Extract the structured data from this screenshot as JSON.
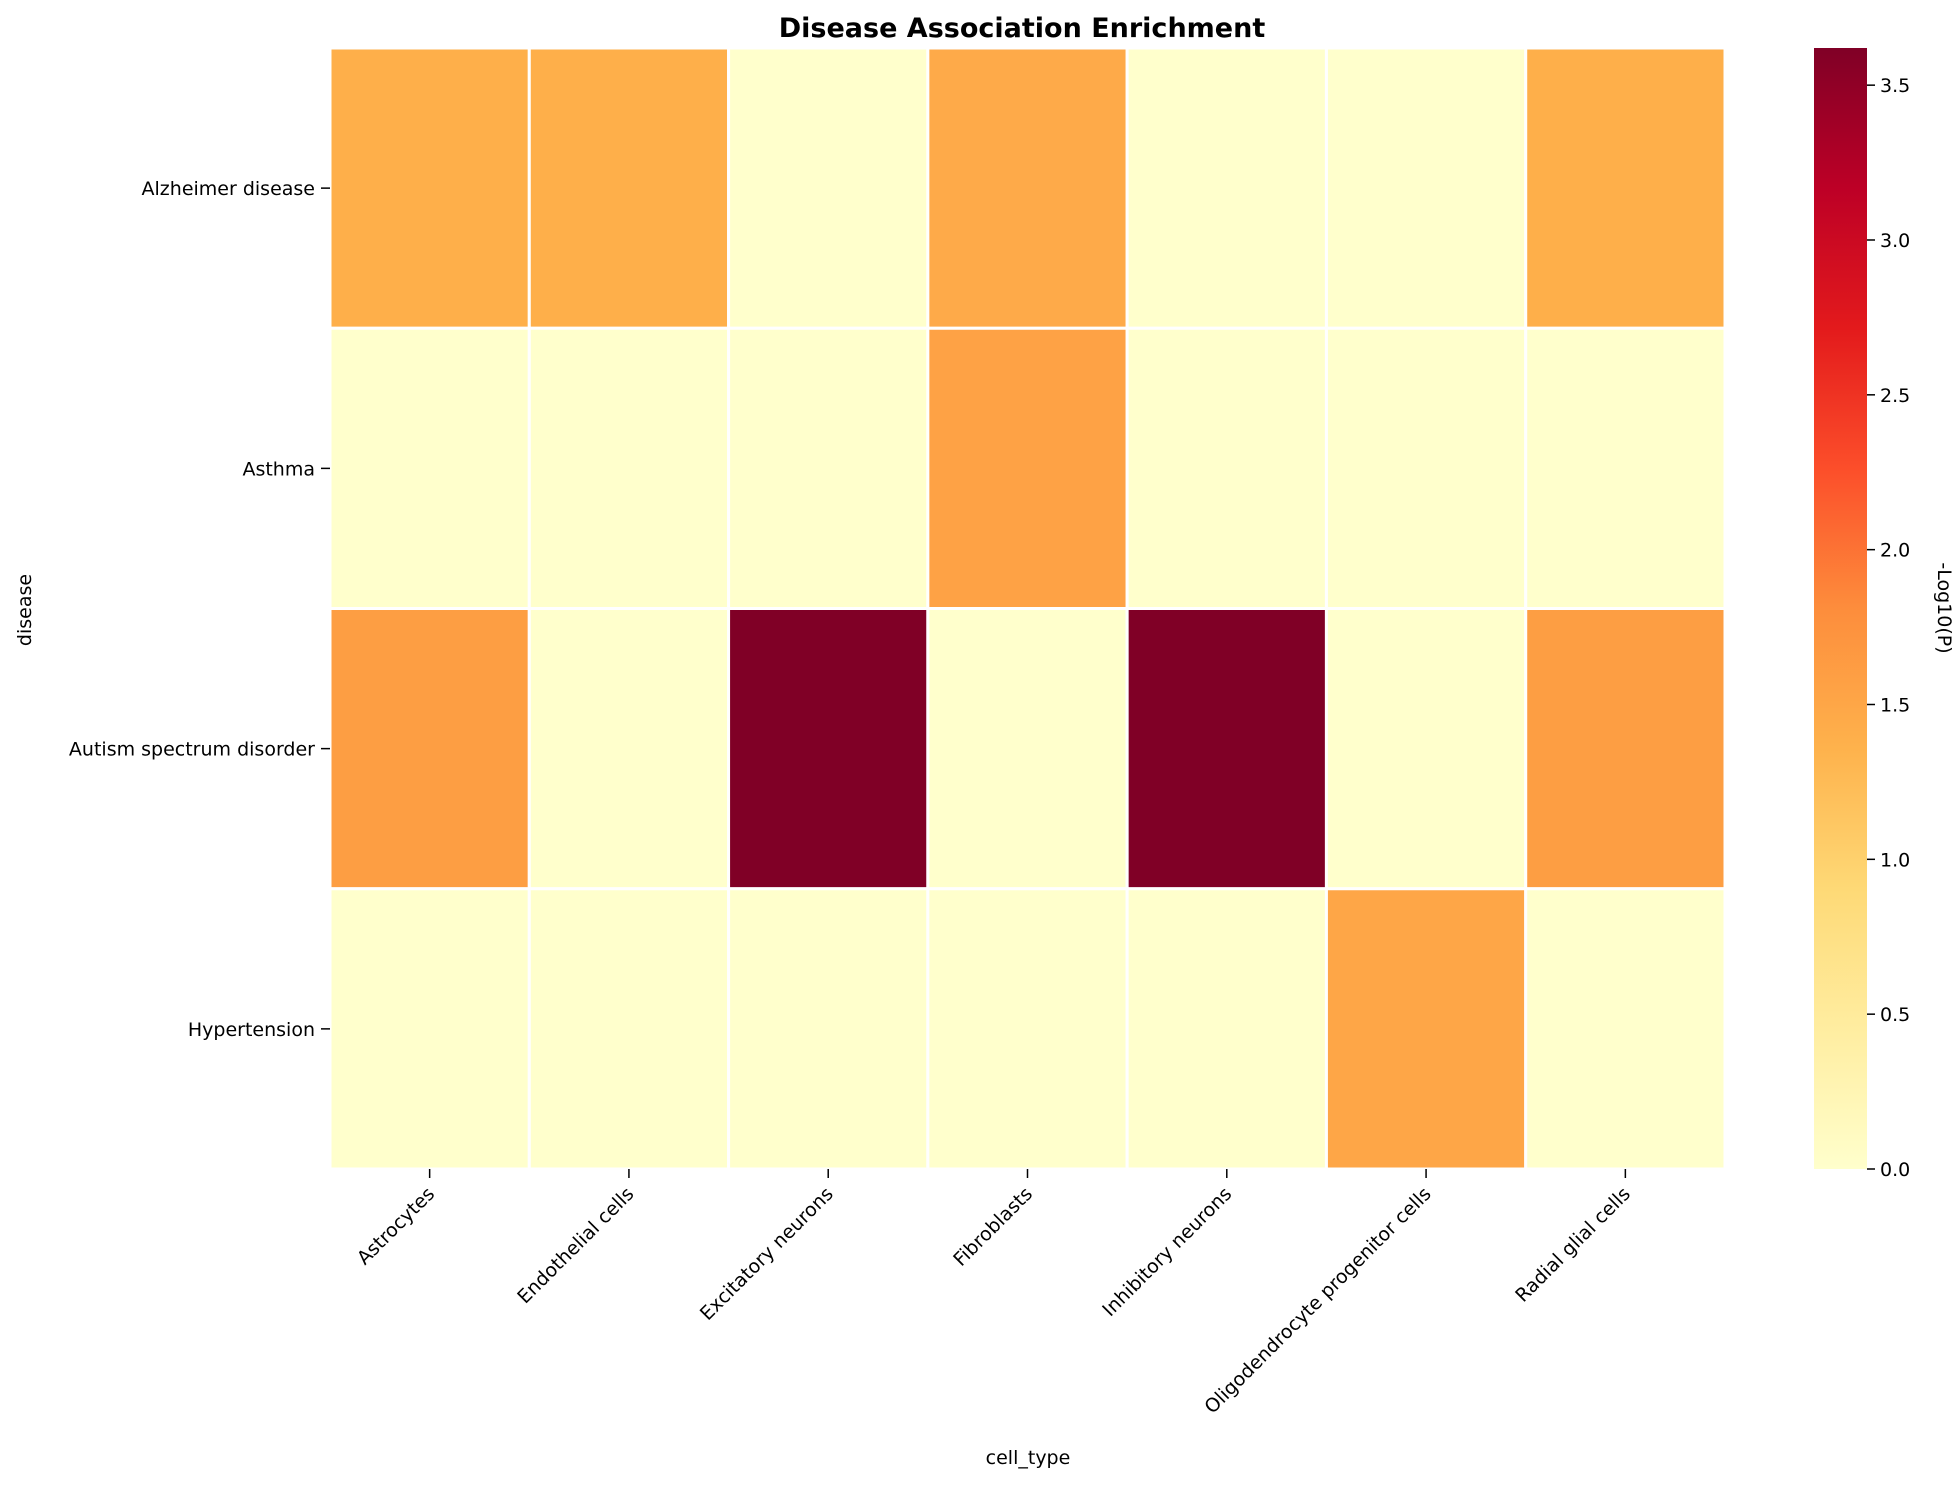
{
  "chart_data": {
    "type": "heatmap",
    "title": "Disease Association Enrichment",
    "xlabel": "cell_type",
    "ylabel": "disease",
    "x_categories": [
      "Astrocytes",
      "Endothelial cells",
      "Excitatory neurons",
      "Fibroblasts",
      "Inhibitory neurons",
      "Oligodendrocyte progenitor cells",
      "Radial glial cells"
    ],
    "y_categories": [
      "Alzheimer disease",
      "Asthma",
      "Autism spectrum disorder",
      "Hypertension"
    ],
    "values": [
      [
        1.4,
        1.4,
        0.0,
        1.45,
        0.0,
        0.0,
        1.4
      ],
      [
        0.0,
        0.0,
        0.0,
        1.55,
        0.0,
        0.0,
        0.0
      ],
      [
        1.6,
        0.0,
        3.62,
        0.0,
        3.62,
        0.0,
        1.6
      ],
      [
        0.0,
        0.0,
        0.0,
        0.0,
        0.0,
        1.5,
        0.0
      ]
    ],
    "colorbar": {
      "label": "-Log10(P)",
      "vmin": 0.0,
      "vmax": 3.62,
      "ticks": [
        0.0,
        0.5,
        1.0,
        1.5,
        2.0,
        2.5,
        3.0,
        3.5
      ],
      "tick_labels": [
        "0.0",
        "0.5",
        "1.0",
        "1.5",
        "2.0",
        "2.5",
        "3.0",
        "3.5"
      ],
      "colormap": "YlOrRd",
      "colormap_stops": [
        "#ffffcc",
        "#ffeda0",
        "#fed976",
        "#feb24c",
        "#fd8d3c",
        "#fc4e2a",
        "#e31a1c",
        "#bd0026",
        "#800026"
      ]
    },
    "grid_line_color": "#ffffff"
  }
}
